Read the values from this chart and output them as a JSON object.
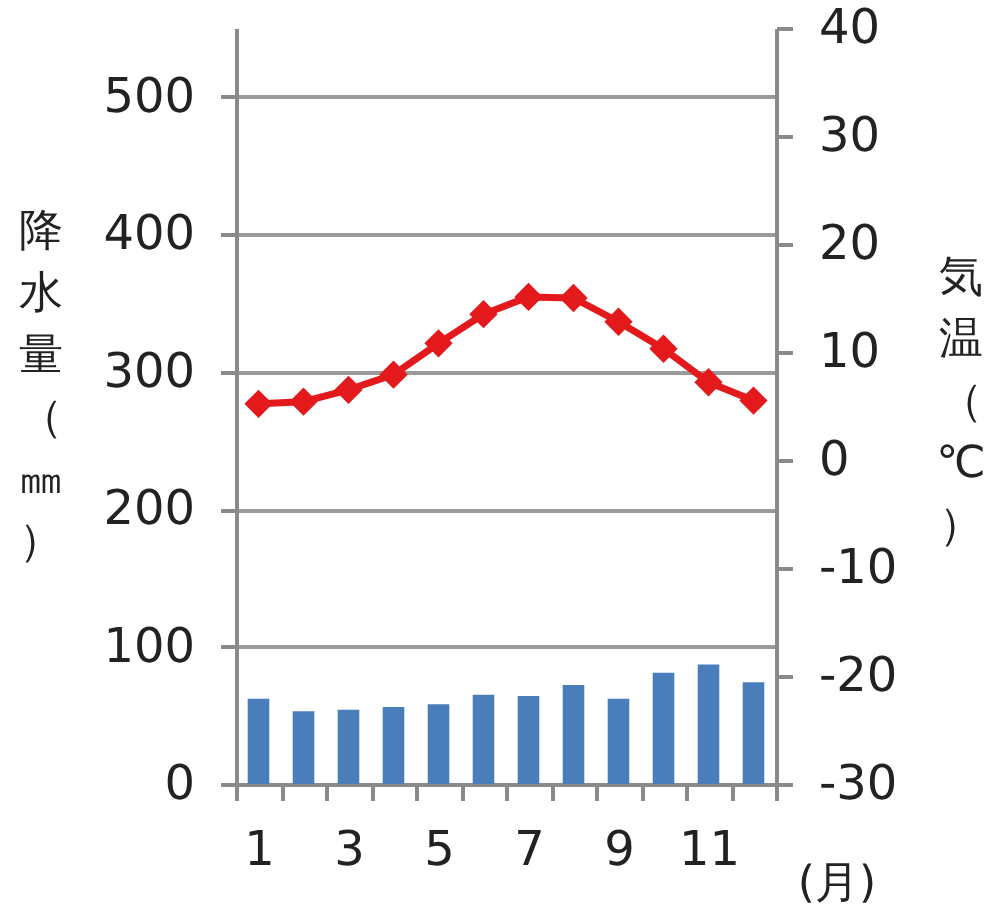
{
  "chart_data": {
    "type": "bar",
    "ylabel": "降水量（㎜）",
    "y2label": "気温（℃）",
    "xlabel": "(月)",
    "categories": [
      "1",
      null,
      "3",
      null,
      "5",
      null,
      "7",
      null,
      "9",
      null,
      "11",
      null
    ],
    "series": [
      {
        "color": "#4a7ebb",
        "values": [
          62,
          53,
          54,
          56,
          58,
          65,
          64,
          72,
          62,
          81,
          87,
          74
        ]
      },
      {
        "type": "line",
        "axis": "y2",
        "color": "#e3191c",
        "values": [
          5.2,
          5.4,
          6.5,
          7.9,
          10.8,
          13.5,
          15.1,
          15.0,
          12.8,
          10.3,
          7.2,
          5.5
        ]
      }
    ],
    "ylim": [
      0,
      550
    ],
    "yticks": [
      0,
      100,
      200,
      300,
      400,
      500
    ],
    "y2lim": [
      -30,
      40
    ],
    "y2ticks": [
      -30,
      -20,
      -10,
      0,
      10,
      20,
      30,
      40
    ],
    "grid": "y",
    "marker": "diamond"
  }
}
